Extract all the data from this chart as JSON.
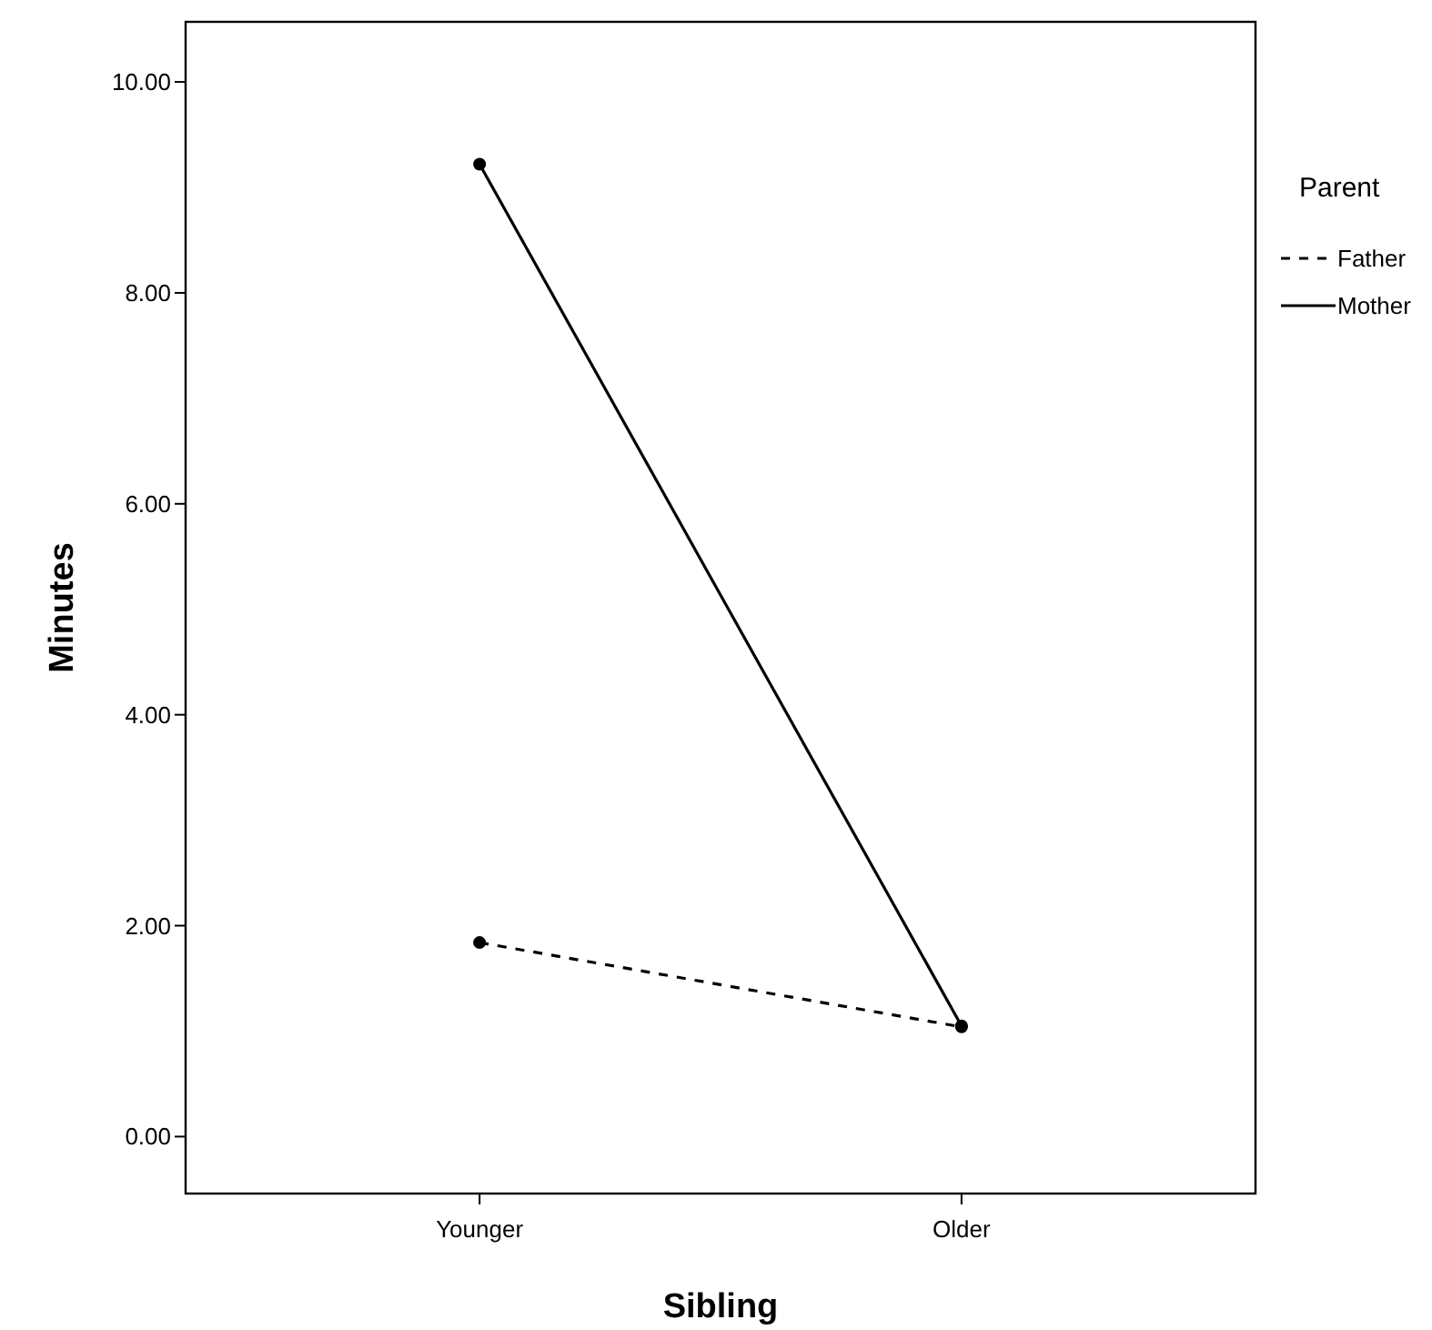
{
  "chart_data": {
    "type": "line",
    "xlabel": "Sibling",
    "ylabel": "Minutes",
    "legend_title": "Parent",
    "categories": [
      "Younger",
      "Older"
    ],
    "series": [
      {
        "name": "Father",
        "color": "#000000",
        "values": [
          1.84,
          1.04
        ],
        "line_style": "dashed"
      },
      {
        "name": "Mother",
        "color": "#000000",
        "values": [
          9.22,
          1.05
        ],
        "line_style": "solid"
      }
    ],
    "ylim": [
      -0.54,
      10.57
    ],
    "yticks": [
      {
        "value": 0,
        "label": "0.00"
      },
      {
        "value": 2,
        "label": "2.00"
      },
      {
        "value": 4,
        "label": "4.00"
      },
      {
        "value": 6,
        "label": "6.00"
      },
      {
        "value": 8,
        "label": "8.00"
      },
      {
        "value": 10,
        "label": "10.00"
      }
    ],
    "legend": "right",
    "marker": "circle",
    "grid": false
  }
}
